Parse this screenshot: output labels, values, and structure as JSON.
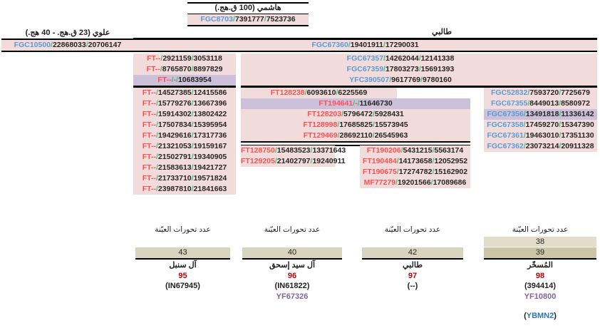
{
  "colors": {
    "pink": "#f2dcdb",
    "purple": "#ccc0da",
    "tan": "#d9d4bd",
    "tan_light": "#e1ddca",
    "tan_dark": "#cdc6a6",
    "blue": "#5b9bd5",
    "red": "#ff5050",
    "green": "#47bd82",
    "dark": "#262626",
    "dark_red": "#c00000",
    "yf_purple": "#8064a2",
    "yb_blue": "#2e75b6",
    "gray_line": "#7f7f7f"
  },
  "hashimi": {
    "title": "هاشمي (100 ق.هج.)",
    "row": {
      "n": "FGC8703",
      "t": "b",
      "v": [
        "7391777",
        "7523736"
      ]
    }
  },
  "alawi": {
    "title": "علوي (23 ق.هج. - 40 هج.)",
    "row": {
      "n": "FGC10500",
      "t": "b",
      "v": [
        "22868033",
        "20706147"
      ]
    }
  },
  "talabi": {
    "title": "طالبي",
    "row": {
      "n": "FGC67360",
      "t": "b",
      "v": [
        "19401911",
        "17290031"
      ]
    }
  },
  "left_top": [
    {
      "n": "FT--",
      "t": "r",
      "v": [
        "2921159",
        "3053118"
      ]
    },
    {
      "n": "FT--",
      "t": "r",
      "v": [
        "8765870",
        "8897829"
      ]
    },
    {
      "n": "FT--",
      "t": "r",
      "v": [
        "-",
        "10683954"
      ],
      "h": true
    }
  ],
  "left_bottom": [
    {
      "n": "FT--",
      "t": "r",
      "v": [
        "14527385",
        "12415586"
      ]
    },
    {
      "n": "FT--",
      "t": "r",
      "v": [
        "15779276",
        "13667396"
      ]
    },
    {
      "n": "FT--",
      "t": "r",
      "v": [
        "15914302",
        "13802422"
      ]
    },
    {
      "n": "FT--",
      "t": "r",
      "v": [
        "17507834",
        "15395954"
      ]
    },
    {
      "n": "FT--",
      "t": "r",
      "v": [
        "19429616",
        "17317736"
      ]
    },
    {
      "n": "FT--",
      "t": "r",
      "v": [
        "21321053",
        "19159167"
      ]
    },
    {
      "n": "FT--",
      "t": "r",
      "v": [
        "21502791",
        "19340905"
      ]
    },
    {
      "n": "FT--",
      "t": "r",
      "v": [
        "21583613",
        "19421727"
      ]
    },
    {
      "n": "FT--",
      "t": "r",
      "v": [
        "21733710",
        "19571824"
      ]
    },
    {
      "n": "FT--",
      "t": "r",
      "v": [
        "23987810",
        "21841663"
      ]
    }
  ],
  "mid_top": [
    {
      "n": "FGC67357",
      "t": "b",
      "v": [
        "14262044",
        "12141338"
      ]
    },
    {
      "n": "FGC67359",
      "t": "b",
      "v": [
        "17803273",
        "15691393"
      ]
    },
    {
      "n": "YFC390507",
      "t": "b",
      "v": [
        "9617769",
        "9780160"
      ]
    }
  ],
  "ft128238": [
    {
      "n": "FT128238",
      "t": "r",
      "v": [
        "6093610",
        "6225569"
      ]
    }
  ],
  "mid4": [
    {
      "n": "FT194641",
      "t": "r",
      "v": [
        "-",
        "11646730"
      ],
      "h": true
    },
    {
      "n": "FT128203",
      "t": "r",
      "v": [
        "5796472",
        "5928431"
      ]
    },
    {
      "n": "FT128998",
      "t": "r",
      "v": [
        "17685825",
        "15573945"
      ]
    },
    {
      "n": "FT129469",
      "t": "r",
      "v": [
        "28692110",
        "26545963"
      ]
    }
  ],
  "sub_left": [
    {
      "n": "FT128750",
      "t": "r",
      "v": [
        "15483523",
        "13371643"
      ]
    },
    {
      "n": "FT129205",
      "t": "r",
      "v": [
        "21402797",
        "19240911"
      ]
    }
  ],
  "sub_right": [
    {
      "n": "FT190206",
      "t": "r",
      "v": [
        "5431215",
        "5563174"
      ]
    },
    {
      "n": "FT190484",
      "t": "r",
      "v": [
        "14173658",
        "12052952"
      ]
    },
    {
      "n": "FT190675",
      "t": "r",
      "v": [
        "17274782",
        "15162902"
      ]
    },
    {
      "n": "MF77279",
      "t": "r",
      "v": [
        "19201566",
        "17089686"
      ]
    }
  ],
  "right_col": [
    {
      "n": "FGC52832",
      "t": "b",
      "v": [
        "7593720",
        "7725679"
      ]
    },
    {
      "n": "FGC67355",
      "t": "b",
      "v": [
        "8449013",
        "8580972"
      ]
    },
    {
      "n": "FGC67356",
      "t": "b",
      "v": [
        "13491818",
        "11336142"
      ],
      "h": true
    },
    {
      "n": "FGC67358",
      "t": "b",
      "v": [
        "17459270",
        "15347390"
      ]
    },
    {
      "n": "FGC67361",
      "t": "b",
      "v": [
        "19463010",
        "17351130"
      ]
    },
    {
      "n": "FGC67362",
      "t": "b",
      "v": [
        "23073214",
        "20911328"
      ]
    }
  ],
  "bottom_groups": [
    {
      "header": "عدد تحورات العيّنة",
      "bars": [
        "43"
      ],
      "name": "آل سنبل",
      "mutations": "95",
      "kit": "(IN67945)",
      "yf": ""
    },
    {
      "header": "عدد تحورات العيّنة",
      "bars": [
        "40"
      ],
      "name": "آل سيد إسحق",
      "mutations": "96",
      "kit": "(IN61822)",
      "yf": "YF67326"
    },
    {
      "header": "عدد تحورات العيّنة",
      "bars": [
        "42"
      ],
      "name": "طالبي",
      "mutations": "97",
      "kit": "(--)",
      "yf": ""
    },
    {
      "header": "عدد تحورات العيّنة",
      "bars": [
        "38",
        "39"
      ],
      "name": "المُسخّر",
      "mutations": "98",
      "kit": "(394414)",
      "yf": "YF10800",
      "extra_open": "(",
      "extra_id": "YBMN2",
      "extra_close": ")"
    }
  ]
}
